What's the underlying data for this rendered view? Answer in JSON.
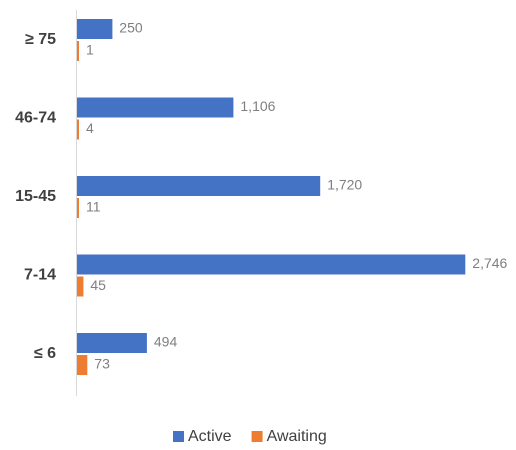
{
  "chart_data": {
    "type": "bar",
    "orientation": "horizontal",
    "categories": [
      "≥ 75",
      "46-74",
      "15-45",
      "7-14",
      "≤ 6"
    ],
    "series": [
      {
        "name": "Active",
        "color": "#4472c4",
        "values": [
          250,
          1106,
          1720,
          2746,
          494
        ],
        "labels": [
          "250",
          "1,106",
          "1,720",
          "2,746",
          "494"
        ]
      },
      {
        "name": "Awaiting",
        "color": "#ed7d31",
        "values": [
          1,
          4,
          11,
          45,
          73
        ],
        "labels": [
          "1",
          "4",
          "11",
          "45",
          "73"
        ]
      }
    ],
    "title": "",
    "xlabel": "",
    "ylabel": "",
    "xlim": [
      0,
      3000
    ],
    "grid": false,
    "legend": "bottom"
  }
}
